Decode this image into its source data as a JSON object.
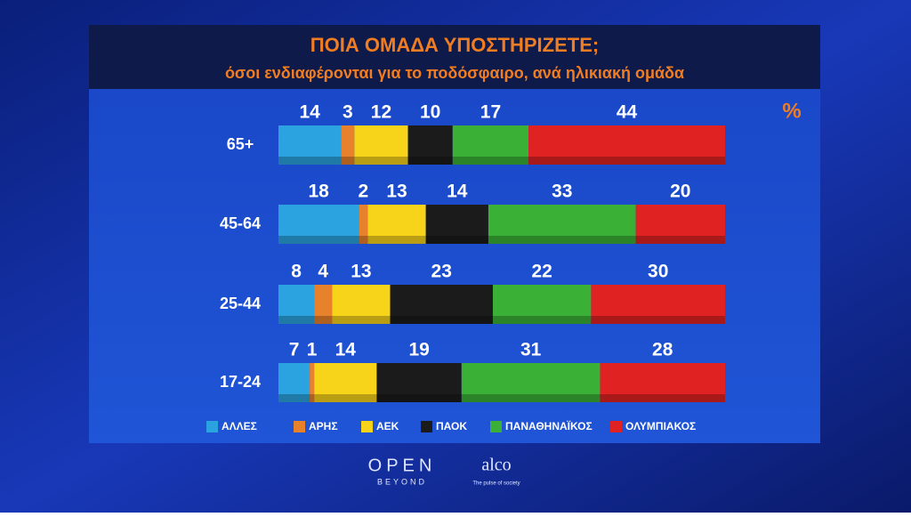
{
  "chart_data": {
    "type": "stacked-bar",
    "title": "ΠΟΙΑ ΟΜΑΔΑ ΥΠΟΣΤΗΡΙΖΕΤΕ;",
    "subtitle": "όσοι ενδιαφέρονται για το ποδόσφαιρο, ανά ηλικιακή ομάδα",
    "unit_label": "%",
    "categories": [
      "65+",
      "45-64",
      "25-44",
      "17-24"
    ],
    "xlim": [
      0,
      100
    ],
    "series": [
      {
        "name": "ΑΛΛΕΣ",
        "color": "#2aa3e0",
        "values": [
          14,
          18,
          8,
          7
        ]
      },
      {
        "name": "ΑΡΗΣ",
        "color": "#e8812c",
        "values": [
          3,
          2,
          4,
          1
        ]
      },
      {
        "name": "ΑΕΚ",
        "color": "#f7d31a",
        "values": [
          12,
          13,
          13,
          14
        ]
      },
      {
        "name": "ΠΑΟΚ",
        "color": "#1b1b1b",
        "values": [
          10,
          14,
          23,
          19
        ]
      },
      {
        "name": "ΠΑΝΑΘΗΝΑΪΚΟΣ",
        "color": "#3bb036",
        "values": [
          17,
          33,
          22,
          31
        ]
      },
      {
        "name": "ΟΛΥΜΠΙΑΚΟΣ",
        "color": "#e02222",
        "values": [
          44,
          20,
          30,
          28
        ]
      }
    ]
  },
  "footer": {
    "brand": "OPEN",
    "brand_sub": "BEYOND",
    "partner": "alco",
    "partner_sub": "The pulse of society"
  }
}
